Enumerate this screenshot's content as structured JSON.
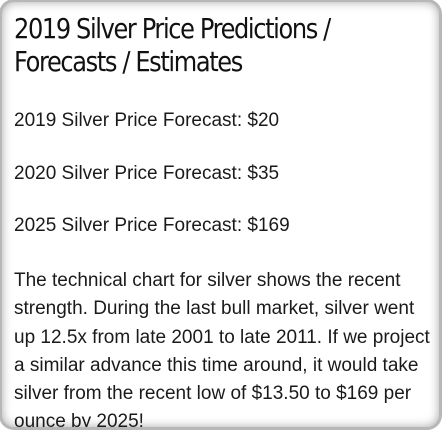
{
  "article": {
    "title": "2019 Silver Price Predictions / Forecasts / Estimates",
    "forecasts": [
      "2019 Silver Price Forecast: $20",
      "2020 Silver Price Forecast: $35",
      "2025 Silver Price Forecast: $169"
    ],
    "paragraph": "The technical chart for silver shows the recent strength. During the last bull market, silver went up 12.5x from late 2001 to late 2011. If we project a similar advance this time around, it would take silver from the recent low of $13.50 to $169 per ounce by 2025!"
  }
}
